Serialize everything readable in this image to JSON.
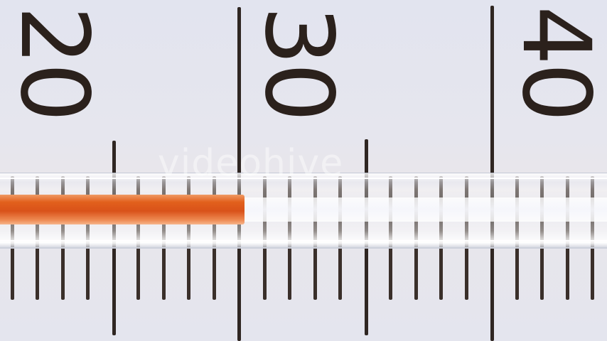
{
  "scale": {
    "labels": [
      "20",
      "30",
      "40"
    ],
    "reading": 30
  },
  "watermark": {
    "text": "videohive"
  },
  "colors": {
    "liquid": "#e2601c",
    "ink": "#2f2622",
    "background": "#e4e5ee"
  }
}
